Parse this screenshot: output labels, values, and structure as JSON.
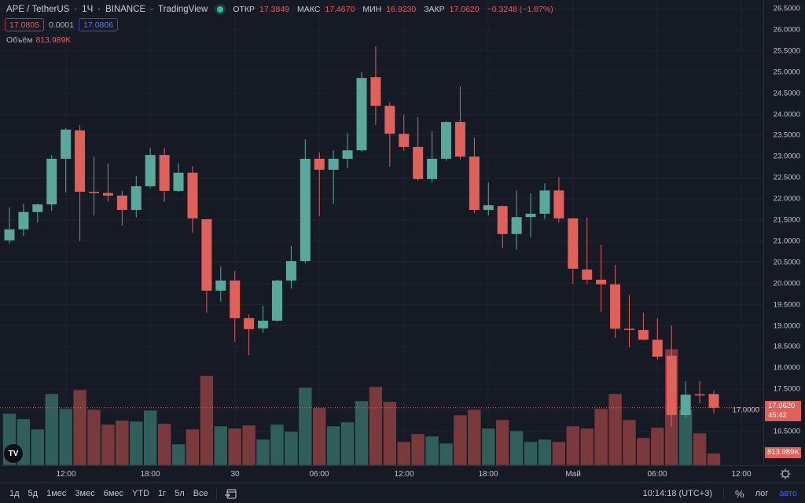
{
  "header": {
    "symbol": "APE / TetherUS",
    "interval": "1Ч",
    "exchange": "BINANCE",
    "source": "TradingView",
    "ohlc": {
      "open_label": "ОТКР",
      "open": "17.3849",
      "high_label": "МАКС",
      "high": "17.4670",
      "low_label": "МИН",
      "low": "16.9230",
      "close_label": "ЗАКР",
      "close": "17.0620",
      "change": "−0.3248 (−1.87%)"
    },
    "sell_price": "17.0805",
    "spread": "0.0001",
    "buy_price": "17.0806",
    "volume_label": "Объём",
    "volume_value": "813.989K"
  },
  "price_axis": {
    "labels": [
      "26.5000",
      "26.0000",
      "25.5000",
      "25.0000",
      "24.5000",
      "24.0000",
      "23.5000",
      "23.0000",
      "22.5000",
      "22.0000",
      "21.5000",
      "21.0000",
      "20.5000",
      "20.0000",
      "19.5000",
      "19.0000",
      "18.5000",
      "18.0000",
      "17.5000",
      "17.0000",
      "16.5000"
    ],
    "current_price": "17.0620",
    "countdown": "45:42",
    "current_volume": "813.989K"
  },
  "time_axis": {
    "labels": [
      "12:00",
      "18:00",
      "30",
      "06:00",
      "12:00",
      "18:00",
      "Май",
      "06:00",
      "12:00"
    ]
  },
  "bottom_bar": {
    "ranges": [
      "1д",
      "5д",
      "1мес",
      "3мес",
      "6мес",
      "YTD",
      "1г",
      "5л",
      "Все"
    ],
    "clock": "10:14:18 (UTC+3)",
    "percent": "%",
    "log": "лог",
    "auto": "авто"
  },
  "colors": {
    "up": "#5aa89b",
    "down": "#e0605a",
    "vol_up": "#2f5e5b",
    "vol_down": "#7a3a3c",
    "background": "#161a25",
    "auto_active": "#2962ff"
  },
  "chart_data": {
    "type": "candlestick",
    "interval": "1h",
    "ylim": [
      16.5,
      26.5
    ],
    "candles": [
      [
        21.02,
        21.8,
        20.94,
        21.28
      ],
      [
        21.28,
        21.89,
        21.13,
        21.69
      ],
      [
        21.69,
        21.89,
        21.44,
        21.87
      ],
      [
        21.87,
        23.04,
        21.72,
        22.95
      ],
      [
        22.95,
        23.67,
        22.15,
        23.64
      ],
      [
        23.62,
        23.75,
        21.0,
        22.17
      ],
      [
        22.17,
        23.0,
        21.61,
        22.14
      ],
      [
        22.14,
        22.84,
        21.93,
        22.08
      ],
      [
        22.08,
        22.19,
        21.37,
        21.74
      ],
      [
        21.74,
        22.54,
        21.56,
        22.3
      ],
      [
        22.3,
        23.21,
        22.26,
        23.04
      ],
      [
        23.04,
        23.21,
        21.93,
        22.19
      ],
      [
        22.19,
        22.84,
        22.17,
        22.62
      ],
      [
        22.62,
        22.78,
        21.2,
        21.54
      ],
      [
        21.52,
        21.52,
        19.31,
        19.83
      ],
      [
        19.83,
        20.4,
        19.57,
        20.07
      ],
      [
        20.07,
        20.29,
        18.62,
        19.18
      ],
      [
        19.18,
        19.27,
        18.3,
        18.92
      ],
      [
        18.94,
        19.47,
        18.84,
        19.12
      ],
      [
        19.12,
        20.09,
        19.1,
        20.07
      ],
      [
        20.07,
        20.89,
        19.88,
        20.53
      ],
      [
        20.53,
        23.41,
        20.48,
        22.95
      ],
      [
        22.95,
        23.1,
        21.59,
        22.69
      ],
      [
        22.69,
        23.15,
        21.89,
        22.95
      ],
      [
        22.95,
        23.56,
        22.73,
        23.15
      ],
      [
        23.15,
        24.99,
        23.12,
        24.86
      ],
      [
        24.88,
        25.61,
        23.75,
        24.2
      ],
      [
        24.2,
        24.29,
        22.76,
        23.54
      ],
      [
        23.54,
        23.99,
        23.14,
        23.23
      ],
      [
        23.23,
        23.93,
        22.43,
        22.47
      ],
      [
        22.47,
        23.6,
        22.39,
        22.95
      ],
      [
        22.95,
        23.84,
        22.9,
        23.82
      ],
      [
        23.82,
        24.66,
        22.93,
        23.0
      ],
      [
        23.0,
        23.45,
        21.67,
        21.74
      ],
      [
        21.74,
        22.39,
        21.61,
        21.85
      ],
      [
        21.83,
        21.85,
        20.83,
        21.17
      ],
      [
        21.17,
        22.2,
        20.8,
        21.57
      ],
      [
        21.57,
        22.13,
        21.09,
        21.65
      ],
      [
        21.65,
        22.37,
        21.52,
        22.2
      ],
      [
        22.2,
        22.52,
        21.44,
        21.54
      ],
      [
        21.54,
        21.54,
        19.99,
        20.35
      ],
      [
        20.33,
        21.56,
        19.99,
        20.09
      ],
      [
        20.09,
        20.92,
        19.33,
        19.98
      ],
      [
        19.98,
        20.44,
        18.71,
        18.93
      ],
      [
        18.93,
        19.73,
        18.49,
        18.9
      ],
      [
        18.9,
        19.31,
        18.66,
        18.67
      ],
      [
        18.67,
        19.17,
        18.21,
        18.27
      ],
      [
        18.29,
        19.0,
        16.61,
        16.89
      ],
      [
        16.89,
        17.69,
        16.83,
        17.37
      ],
      [
        17.38,
        17.69,
        17.17,
        17.37
      ],
      [
        17.3849,
        17.467,
        16.923,
        17.062
      ]
    ],
    "volumes_k": [
      3511,
      3139,
      2447,
      4841,
      3830,
      5107,
      3777,
      2766,
      3032,
      2979,
      3724,
      2820,
      1436,
      2447,
      6065,
      2660,
      2500,
      2713,
      1756,
      2766,
      2288,
      5267,
      3884,
      2660,
      2926,
      4362,
      5320,
      4309,
      1596,
      2128,
      1968,
      1490,
      3405,
      3777,
      2500,
      3086,
      2341,
      1596,
      1756,
      1596,
      2660,
      2500,
      3830,
      4841,
      3086,
      1862,
      2554,
      7874,
      3777,
      2181,
      814
    ]
  }
}
